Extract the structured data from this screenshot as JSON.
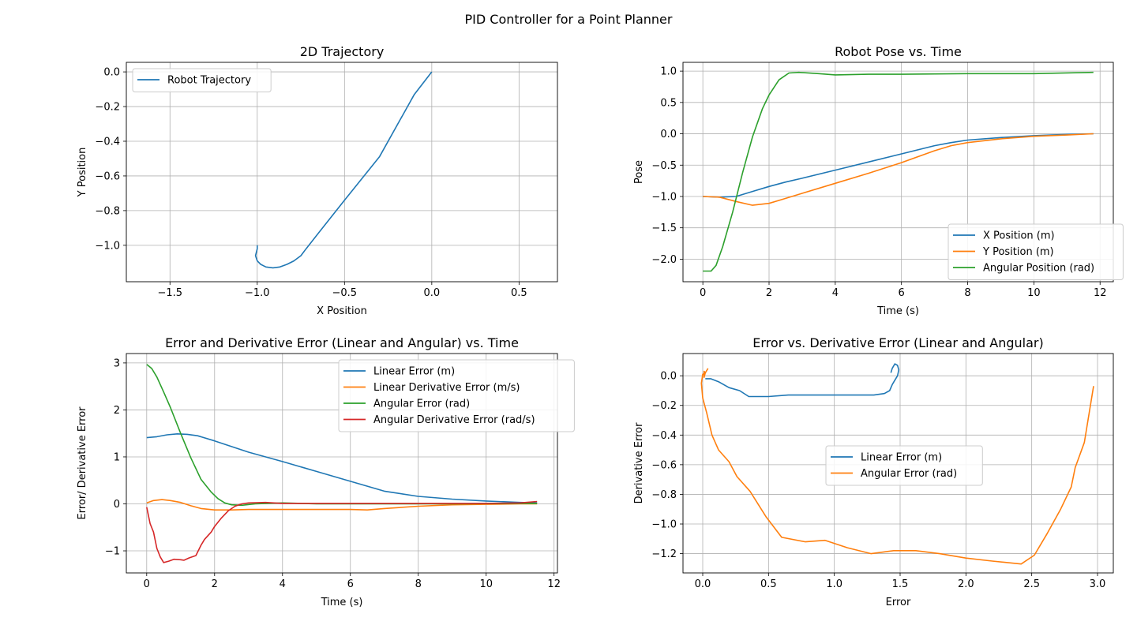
{
  "figure": {
    "title": "PID Controller for a Point Planner"
  },
  "colors": {
    "c0": "#1f77b4",
    "c1": "#ff7f0e",
    "c2": "#2ca02c",
    "c3": "#d62728",
    "grid": "#b0b0b0"
  },
  "chart_data": [
    {
      "type": "line",
      "title": "2D Trajectory",
      "xlabel": "X Position",
      "ylabel": "Y Position",
      "xlim": [
        -1.75,
        0.72
      ],
      "ylim": [
        -1.21,
        0.055
      ],
      "xticks": [
        -1.5,
        -1.0,
        -0.5,
        0.0,
        0.5
      ],
      "xticklabels": [
        "−1.5",
        "−1.0",
        "−0.5",
        "0.0",
        "0.5"
      ],
      "yticks": [
        0.0,
        -0.2,
        -0.4,
        -0.6,
        -0.8,
        -1.0
      ],
      "yticklabels": [
        "0.0",
        "−0.2",
        "−0.4",
        "−0.6",
        "−0.8",
        "−1.0"
      ],
      "grid": true,
      "legend": "upper left",
      "series": [
        {
          "name": "Robot Trajectory",
          "color": "c0",
          "x": [
            -1.0,
            -1.0,
            -1.01,
            -1.0,
            -0.98,
            -0.95,
            -0.91,
            -0.87,
            -0.83,
            -0.79,
            -0.75,
            -0.72,
            -0.65,
            -0.5,
            -0.3,
            -0.1,
            0.0
          ],
          "y": [
            -1.0,
            -1.02,
            -1.06,
            -1.09,
            -1.11,
            -1.125,
            -1.13,
            -1.125,
            -1.11,
            -1.09,
            -1.06,
            -1.02,
            -0.93,
            -0.74,
            -0.49,
            -0.13,
            0.0
          ]
        }
      ]
    },
    {
      "type": "line",
      "title": "Robot Pose vs. Time",
      "xlabel": "Time (s)",
      "ylabel": "Pose",
      "xlim": [
        -0.6,
        12.4
      ],
      "ylim": [
        -2.36,
        1.14
      ],
      "xticks": [
        0,
        2,
        4,
        6,
        8,
        10,
        12
      ],
      "xticklabels": [
        "0",
        "2",
        "4",
        "6",
        "8",
        "10",
        "12"
      ],
      "yticks": [
        1.0,
        0.5,
        0.0,
        -0.5,
        -1.0,
        -1.5,
        -2.0
      ],
      "yticklabels": [
        "1.0",
        "0.5",
        "0.0",
        "−0.5",
        "−1.0",
        "−1.5",
        "−2.0"
      ],
      "grid": true,
      "legend": "lower right",
      "series": [
        {
          "name": "X Position (m)",
          "color": "c0",
          "x": [
            0,
            0.5,
            1.0,
            1.5,
            2.0,
            2.5,
            3.0,
            4.0,
            5.0,
            6.0,
            7.0,
            7.5,
            8.0,
            9.0,
            10.0,
            11.0,
            11.8
          ],
          "y": [
            -1.0,
            -1.01,
            -1.0,
            -0.92,
            -0.84,
            -0.77,
            -0.71,
            -0.58,
            -0.45,
            -0.32,
            -0.19,
            -0.14,
            -0.1,
            -0.06,
            -0.03,
            -0.01,
            0.0
          ]
        },
        {
          "name": "Y Position (m)",
          "color": "c1",
          "x": [
            0,
            0.5,
            1.0,
            1.5,
            2.0,
            2.5,
            3.0,
            4.0,
            5.0,
            6.0,
            7.0,
            7.5,
            8.0,
            9.0,
            10.0,
            11.0,
            11.8
          ],
          "y": [
            -1.0,
            -1.01,
            -1.08,
            -1.14,
            -1.11,
            -1.03,
            -0.95,
            -0.79,
            -0.63,
            -0.46,
            -0.27,
            -0.19,
            -0.14,
            -0.08,
            -0.04,
            -0.02,
            0.0
          ]
        },
        {
          "name": "Angular Position (rad)",
          "color": "c2",
          "x": [
            0,
            0.25,
            0.4,
            0.6,
            0.9,
            1.2,
            1.5,
            1.8,
            2.0,
            2.3,
            2.6,
            2.9,
            3.5,
            4.0,
            5.0,
            6.0,
            8.0,
            10.0,
            11.8
          ],
          "y": [
            -2.19,
            -2.19,
            -2.1,
            -1.8,
            -1.25,
            -0.62,
            -0.05,
            0.4,
            0.62,
            0.86,
            0.97,
            0.98,
            0.96,
            0.94,
            0.95,
            0.95,
            0.96,
            0.96,
            0.98
          ]
        }
      ]
    },
    {
      "type": "line",
      "title": "Error and Derivative Error (Linear and Angular) vs. Time",
      "xlabel": "Time (s)",
      "ylabel": "Error/ Derivative Error",
      "xlim": [
        -0.6,
        12.1
      ],
      "ylim": [
        -1.47,
        3.2
      ],
      "xticks": [
        0,
        2,
        4,
        6,
        8,
        10,
        12
      ],
      "xticklabels": [
        "0",
        "2",
        "4",
        "6",
        "8",
        "10",
        "12"
      ],
      "yticks": [
        3,
        2,
        1,
        0,
        -1
      ],
      "yticklabels": [
        "3",
        "2",
        "1",
        "0",
        "−1"
      ],
      "grid": true,
      "legend": "upper right",
      "series": [
        {
          "name": "Linear Error (m)",
          "color": "c0",
          "x": [
            0,
            0.3,
            0.6,
            0.9,
            1.2,
            1.5,
            2.0,
            3.0,
            4.0,
            5.0,
            6.0,
            7.0,
            8.0,
            9.0,
            10.0,
            11.0,
            11.5
          ],
          "y": [
            1.41,
            1.43,
            1.47,
            1.49,
            1.48,
            1.45,
            1.34,
            1.1,
            0.9,
            0.69,
            0.48,
            0.27,
            0.16,
            0.1,
            0.06,
            0.03,
            0.02
          ]
        },
        {
          "name": "Linear Derivative Error (m/s)",
          "color": "c1",
          "x": [
            0,
            0.2,
            0.45,
            0.7,
            1.0,
            1.3,
            1.6,
            2.0,
            2.5,
            3.0,
            4.0,
            5.0,
            6.0,
            6.5,
            7.0,
            8.0,
            9.0,
            10.0,
            11.0,
            11.5
          ],
          "y": [
            0.02,
            0.07,
            0.09,
            0.07,
            0.03,
            -0.04,
            -0.1,
            -0.13,
            -0.13,
            -0.12,
            -0.12,
            -0.12,
            -0.12,
            -0.13,
            -0.1,
            -0.05,
            -0.02,
            -0.01,
            0.0,
            0.0
          ]
        },
        {
          "name": "Angular Error (rad)",
          "color": "c2",
          "x": [
            0,
            0.15,
            0.3,
            0.5,
            0.7,
            1.0,
            1.3,
            1.6,
            1.9,
            2.1,
            2.3,
            2.5,
            2.8,
            3.2,
            4.0,
            5.0,
            7.0,
            9.0,
            11.0,
            11.5
          ],
          "y": [
            2.97,
            2.88,
            2.7,
            2.38,
            2.05,
            1.5,
            0.98,
            0.52,
            0.25,
            0.11,
            0.02,
            -0.02,
            -0.03,
            0.0,
            0.02,
            0.0,
            0.0,
            0.0,
            0.01,
            0.01
          ]
        },
        {
          "name": "Angular Derivative Error (rad/s)",
          "color": "c3",
          "x": [
            0,
            0.1,
            0.2,
            0.3,
            0.4,
            0.5,
            0.65,
            0.8,
            1.0,
            1.1,
            1.25,
            1.45,
            1.6,
            1.7,
            1.9,
            2.0,
            2.2,
            2.4,
            2.6,
            2.8,
            3.0,
            3.5,
            4.0,
            5.0,
            6.0,
            8.0,
            10.0,
            11.0,
            11.5
          ],
          "y": [
            -0.07,
            -0.42,
            -0.6,
            -0.95,
            -1.13,
            -1.25,
            -1.22,
            -1.18,
            -1.19,
            -1.2,
            -1.15,
            -1.1,
            -0.88,
            -0.76,
            -0.6,
            -0.48,
            -0.3,
            -0.15,
            -0.05,
            0.0,
            0.02,
            0.03,
            0.01,
            0.01,
            0.01,
            0.01,
            0.01,
            0.02,
            0.05
          ]
        }
      ]
    },
    {
      "type": "line",
      "title": "Error vs. Derivative Error (Linear and Angular)",
      "xlabel": "Error",
      "ylabel": "Derivative Error",
      "xlim": [
        -0.15,
        3.12
      ],
      "ylim": [
        -1.33,
        0.15
      ],
      "xticks": [
        0.0,
        0.5,
        1.0,
        1.5,
        2.0,
        2.5,
        3.0
      ],
      "xticklabels": [
        "0.0",
        "0.5",
        "1.0",
        "1.5",
        "2.0",
        "2.5",
        "3.0"
      ],
      "yticks": [
        0.0,
        -0.2,
        -0.4,
        -0.6,
        -0.8,
        -1.0,
        -1.2
      ],
      "yticklabels": [
        "0.0",
        "−0.2",
        "−0.4",
        "−0.6",
        "−0.8",
        "−1.0",
        "−1.2"
      ],
      "grid": true,
      "legend": "center",
      "series": [
        {
          "name": "Linear Error (m)",
          "color": "c0",
          "x": [
            0.02,
            0.06,
            0.12,
            0.2,
            0.28,
            0.35,
            0.5,
            0.65,
            0.9,
            1.1,
            1.3,
            1.38,
            1.42,
            1.44,
            1.46,
            1.48,
            1.49,
            1.48,
            1.46,
            1.44,
            1.43
          ],
          "y": [
            -0.02,
            -0.02,
            -0.04,
            -0.08,
            -0.1,
            -0.14,
            -0.14,
            -0.13,
            -0.13,
            -0.13,
            -0.13,
            -0.12,
            -0.1,
            -0.06,
            -0.03,
            0.0,
            0.04,
            0.07,
            0.08,
            0.05,
            0.02
          ]
        },
        {
          "name": "Angular Error (rad)",
          "color": "c1",
          "x": [
            0.04,
            0.02,
            0.01,
            0.01,
            0.02,
            0.0,
            -0.01,
            0.0,
            0.03,
            0.07,
            0.12,
            0.2,
            0.26,
            0.36,
            0.48,
            0.6,
            0.78,
            0.93,
            1.1,
            1.28,
            1.45,
            1.62,
            1.8,
            2.0,
            2.2,
            2.42,
            2.52,
            2.62,
            2.72,
            2.8,
            2.83,
            2.9,
            2.97
          ],
          "y": [
            0.05,
            0.02,
            -0.01,
            0.03,
            0.02,
            0.01,
            -0.05,
            -0.15,
            -0.25,
            -0.4,
            -0.5,
            -0.58,
            -0.68,
            -0.78,
            -0.95,
            -1.09,
            -1.12,
            -1.11,
            -1.16,
            -1.2,
            -1.18,
            -1.18,
            -1.2,
            -1.23,
            -1.25,
            -1.27,
            -1.21,
            -1.06,
            -0.9,
            -0.75,
            -0.62,
            -0.45,
            -0.07
          ]
        }
      ]
    }
  ]
}
